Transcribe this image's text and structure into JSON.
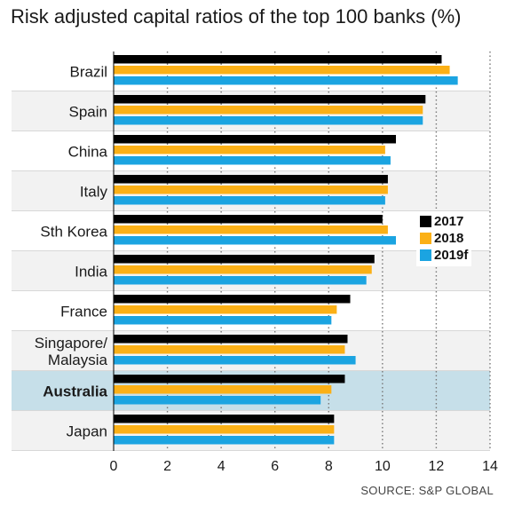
{
  "chart_data": {
    "type": "bar",
    "orientation": "horizontal",
    "title": "Risk adjusted capital ratios of the top 100 banks (%)",
    "source": "SOURCE: S&P GLOBAL",
    "categories": [
      "Brazil",
      "Spain",
      "China",
      "Italy",
      "Sth Korea",
      "India",
      "France",
      "Singapore/\nMalaysia",
      "Australia",
      "Japan"
    ],
    "highlight_category": "Australia",
    "series": [
      {
        "name": "2017",
        "color": "#000000",
        "values": [
          12.2,
          11.6,
          10.5,
          10.2,
          10.0,
          9.7,
          8.8,
          8.7,
          8.6,
          8.2
        ]
      },
      {
        "name": "2018",
        "color": "#fbb016",
        "values": [
          12.5,
          11.5,
          10.1,
          10.2,
          10.2,
          9.6,
          8.3,
          8.6,
          8.1,
          8.2
        ]
      },
      {
        "name": "2019f",
        "color": "#1ba4e1",
        "values": [
          12.8,
          11.5,
          10.3,
          10.1,
          10.5,
          9.4,
          8.1,
          9.0,
          7.7,
          8.2
        ]
      }
    ],
    "xlim": [
      0,
      14
    ],
    "xticks": [
      0,
      2,
      4,
      6,
      8,
      10,
      12,
      14
    ],
    "grid": "vertical-dotted",
    "legend_position": "right-middle"
  }
}
